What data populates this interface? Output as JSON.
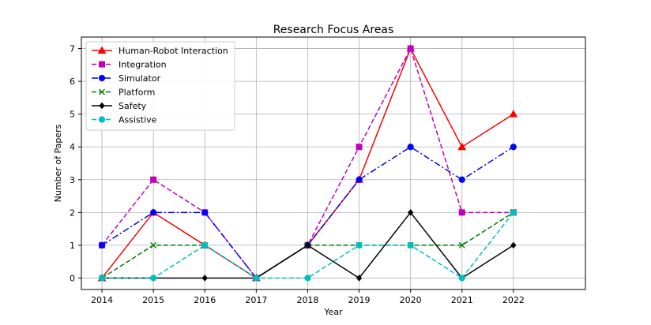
{
  "chart_data": {
    "type": "line",
    "title": "Research Focus Areas",
    "xlabel": "Year",
    "ylabel": "Number of Papers",
    "x": [
      "2014",
      "2015",
      "2016",
      "2017",
      "2018",
      "2019",
      "2020",
      "2021",
      "2022"
    ],
    "yticks": [
      "0",
      "1",
      "2",
      "3",
      "4",
      "5",
      "6",
      "7"
    ],
    "ylim": [
      -0.35,
      7.35
    ],
    "grid": true,
    "legend_position": "top-left",
    "series": [
      {
        "name": "Human-Robot Interaction",
        "values": [
          0,
          2,
          1,
          0,
          1,
          3,
          7,
          4,
          5
        ],
        "color": "#ff0000",
        "marker": "triangle",
        "linestyle": "solid"
      },
      {
        "name": "Integration",
        "values": [
          1,
          3,
          2,
          0,
          1,
          4,
          7,
          2,
          2
        ],
        "color": "#bf00bf",
        "marker": "square",
        "linestyle": "dashed"
      },
      {
        "name": "Simulator",
        "values": [
          1,
          2,
          2,
          0,
          1,
          3,
          4,
          3,
          4
        ],
        "color": "#0000ff",
        "marker": "circle",
        "linestyle": "dashdot"
      },
      {
        "name": "Platform",
        "values": [
          0,
          1,
          1,
          0,
          1,
          1,
          1,
          1,
          2
        ],
        "color": "#008000",
        "marker": "x",
        "linestyle": "dashed"
      },
      {
        "name": "Safety",
        "values": [
          0,
          0,
          0,
          0,
          1,
          0,
          2,
          0,
          1
        ],
        "color": "#000000",
        "marker": "diamond",
        "linestyle": "solid"
      },
      {
        "name": "Assistive",
        "values": [
          0,
          0,
          1,
          0,
          0,
          1,
          1,
          0,
          2
        ],
        "color": "#00bfbf",
        "marker": "circle",
        "linestyle": "dashed"
      }
    ]
  }
}
